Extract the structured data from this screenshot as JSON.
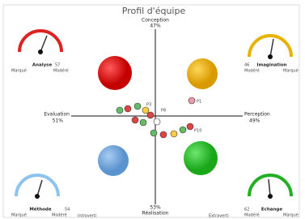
{
  "title": "Profil d'équipe",
  "axes": {
    "top": {
      "label": "Conception",
      "value": "47%"
    },
    "left": {
      "label": "Evaluation",
      "value": "51%"
    },
    "right": {
      "label": "Perception",
      "value": "49%"
    },
    "bottom": {
      "label": "Réalisation",
      "value": "53%"
    }
  },
  "gauges": [
    {
      "name": "Analyse",
      "value": "57",
      "left": "Marqué",
      "right": "Modéré"
    },
    {
      "name": "Imagination",
      "value": "46",
      "left": "Modéré",
      "right": "Marqué"
    },
    {
      "name": "Méthode",
      "value": "54",
      "left": "Marqué",
      "right": "Modéré"
    },
    {
      "name": "Echange",
      "value": "62",
      "left": "Modéré",
      "right": "Marqué"
    }
  ],
  "points": [
    {
      "label": "P1"
    },
    {
      "label": "P8"
    },
    {
      "label": "P3"
    },
    {
      "label": "P10"
    }
  ],
  "footer": [
    "Introverti",
    "Extraverti"
  ]
}
